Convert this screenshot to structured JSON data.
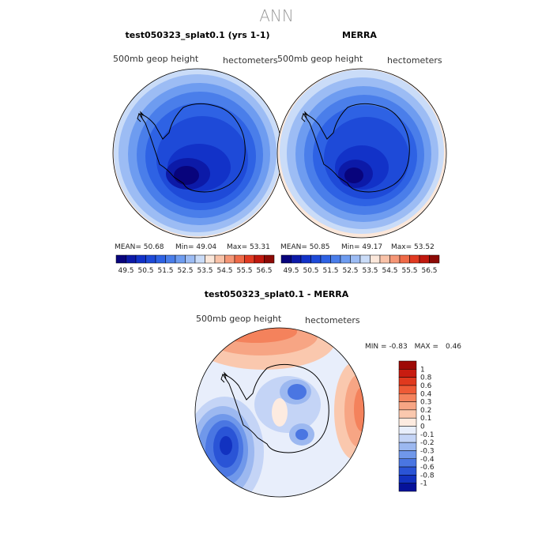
{
  "figure": {
    "title": "ANN"
  },
  "chart_data": [
    {
      "type": "heatmap",
      "title": "test050323_splat0.1 (yrs 1-1)",
      "variable_label": "500mb geop height",
      "units_label": "hectometers",
      "projection": "south-polar stereographic",
      "stats": {
        "mean_label": "MEAN=",
        "mean": "50.68",
        "min_label": "Min=",
        "min": "49.04",
        "max_label": "Max=",
        "max": "53.31"
      },
      "colorbar": {
        "levels": [
          "49.5",
          "50",
          "50.5",
          "51",
          "51.5",
          "52",
          "52.5",
          "53",
          "53.5",
          "54",
          "54.5",
          "55",
          "55.5",
          "56",
          "56.5"
        ],
        "tick_labels": [
          "49.5",
          "50.5",
          "51.5",
          "52.5",
          "53.5",
          "54.5",
          "55.5",
          "56.5"
        ],
        "colors": [
          "#08047c",
          "#0c1aa8",
          "#1232c8",
          "#1e4ad8",
          "#2e62e4",
          "#4a7eea",
          "#6e9cf0",
          "#9cbcf4",
          "#cadcf8",
          "#fbe7da",
          "#f9c2a8",
          "#f59676",
          "#ef6a48",
          "#e13a22",
          "#c0180e",
          "#8c0a06"
        ]
      }
    },
    {
      "type": "heatmap",
      "title": "MERRA",
      "variable_label": "500mb geop height",
      "units_label": "hectometers",
      "projection": "south-polar stereographic",
      "stats": {
        "mean_label": "MEAN=",
        "mean": "50.85",
        "min_label": "Min=",
        "min": "49.17",
        "max_label": "Max=",
        "max": "53.52"
      },
      "colorbar": {
        "levels": [
          "49.5",
          "50",
          "50.5",
          "51",
          "51.5",
          "52",
          "52.5",
          "53",
          "53.5",
          "54",
          "54.5",
          "55",
          "55.5",
          "56",
          "56.5"
        ],
        "tick_labels": [
          "49.5",
          "50.5",
          "51.5",
          "52.5",
          "53.5",
          "54.5",
          "55.5",
          "56.5"
        ],
        "colors": [
          "#08047c",
          "#0c1aa8",
          "#1232c8",
          "#1e4ad8",
          "#2e62e4",
          "#4a7eea",
          "#6e9cf0",
          "#9cbcf4",
          "#cadcf8",
          "#fbe7da",
          "#f9c2a8",
          "#f59676",
          "#ef6a48",
          "#e13a22",
          "#c0180e",
          "#8c0a06"
        ]
      }
    },
    {
      "type": "heatmap",
      "title": "test050323_splat0.1 - MERRA",
      "variable_label": "500mb geop height",
      "units_label": "hectometers",
      "projection": "south-polar stereographic",
      "stats": {
        "min_label": "MIN =",
        "min": "-0.83",
        "max_label": "MAX =",
        "max": "0.46"
      },
      "colorbar": {
        "levels": [
          "1",
          "0.8",
          "0.6",
          "0.4",
          "0.3",
          "0.2",
          "0.1",
          "0",
          "-0.1",
          "-0.2",
          "-0.3",
          "-0.4",
          "-0.6",
          "-0.8",
          "-1"
        ],
        "colors": [
          "#9e0a06",
          "#c81c10",
          "#e0391e",
          "#ee5a36",
          "#f4825c",
          "#f7a584",
          "#fac8ae",
          "#fdebe0",
          "#e8eefb",
          "#c4d4f6",
          "#9cb8f0",
          "#7098ea",
          "#4a76e2",
          "#2a54d6",
          "#1232c0",
          "#06129a"
        ]
      }
    }
  ]
}
